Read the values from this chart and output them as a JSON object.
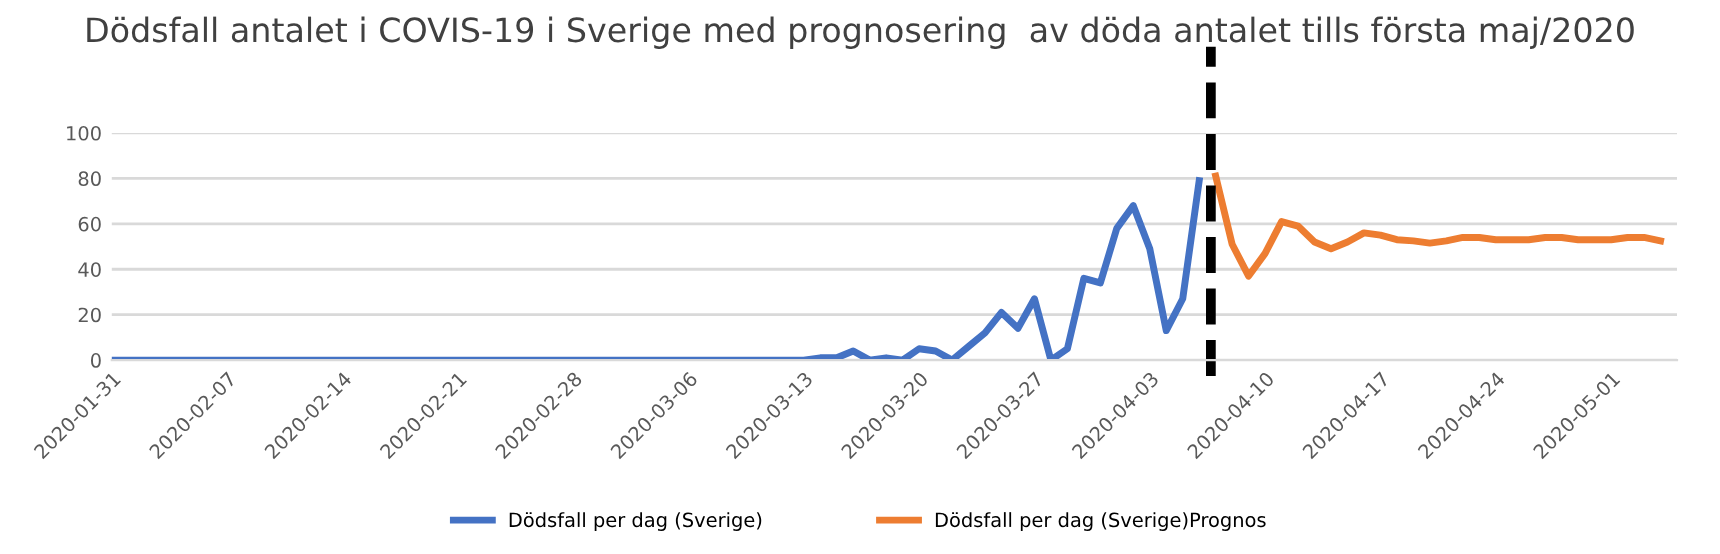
{
  "chart_data": {
    "type": "line",
    "title": "Dödsfall antalet i COVIS-19 i Sverige med prognosering  av döda antalet tills första maj/2020",
    "series": [
      {
        "name": "Dödsfall per dag (Sverige)",
        "color": "#4472c4",
        "x": [
          "2020-01-31",
          "2020-02-01",
          "2020-02-02",
          "2020-02-03",
          "2020-02-04",
          "2020-02-05",
          "2020-02-06",
          "2020-02-07",
          "2020-02-08",
          "2020-02-09",
          "2020-02-10",
          "2020-02-11",
          "2020-02-12",
          "2020-02-13",
          "2020-02-14",
          "2020-02-15",
          "2020-02-16",
          "2020-02-17",
          "2020-02-18",
          "2020-02-19",
          "2020-02-20",
          "2020-02-21",
          "2020-02-22",
          "2020-02-23",
          "2020-02-24",
          "2020-02-25",
          "2020-02-26",
          "2020-02-27",
          "2020-02-28",
          "2020-02-29",
          "2020-03-01",
          "2020-03-02",
          "2020-03-03",
          "2020-03-04",
          "2020-03-05",
          "2020-03-06",
          "2020-03-07",
          "2020-03-08",
          "2020-03-09",
          "2020-03-10",
          "2020-03-11",
          "2020-03-12",
          "2020-03-13",
          "2020-03-14",
          "2020-03-15",
          "2020-03-16",
          "2020-03-17",
          "2020-03-18",
          "2020-03-19",
          "2020-03-20",
          "2020-03-21",
          "2020-03-22",
          "2020-03-23",
          "2020-03-24",
          "2020-03-25",
          "2020-03-26",
          "2020-03-27",
          "2020-03-28",
          "2020-03-29",
          "2020-03-30",
          "2020-03-31",
          "2020-04-01",
          "2020-04-02",
          "2020-04-03",
          "2020-04-04",
          "2020-04-05",
          "2020-04-06"
        ],
        "values": [
          0,
          0,
          0,
          0,
          0,
          0,
          0,
          0,
          0,
          0,
          0,
          0,
          0,
          0,
          0,
          0,
          0,
          0,
          0,
          0,
          0,
          0,
          0,
          0,
          0,
          0,
          0,
          0,
          0,
          0,
          0,
          0,
          0,
          0,
          0,
          0,
          0,
          0,
          0,
          0,
          0,
          0,
          0,
          1,
          1,
          4,
          0,
          1,
          0,
          5,
          4,
          0,
          6,
          12,
          21,
          14,
          27,
          0,
          5,
          36,
          34,
          58,
          68,
          49,
          13,
          27,
          79
        ]
      },
      {
        "name": "Dödsfall per dag (Sverige)Prognos",
        "color": "#ed7d31",
        "x": [
          "2020-04-07",
          "2020-04-08",
          "2020-04-09",
          "2020-04-10",
          "2020-04-11",
          "2020-04-12",
          "2020-04-13",
          "2020-04-14",
          "2020-04-15",
          "2020-04-16",
          "2020-04-17",
          "2020-04-18",
          "2020-04-19",
          "2020-04-20",
          "2020-04-21",
          "2020-04-22",
          "2020-04-23",
          "2020-04-24",
          "2020-04-25",
          "2020-04-26",
          "2020-04-27",
          "2020-04-28",
          "2020-04-29",
          "2020-04-30",
          "2020-05-01",
          "2020-05-02",
          "2020-05-03",
          "2020-05-04"
        ],
        "values": [
          81,
          51,
          37,
          47,
          61,
          59,
          52,
          49,
          52,
          56,
          55,
          53,
          52.5,
          51.5,
          52.5,
          54,
          54,
          53,
          53,
          53,
          54,
          54,
          53,
          53,
          53,
          54,
          54,
          52.5
        ]
      }
    ],
    "xlim": [
      "2020-01-31",
      "2020-05-05"
    ],
    "xticks": [
      "2020-01-31",
      "2020-02-07",
      "2020-02-14",
      "2020-02-21",
      "2020-02-28",
      "2020-03-06",
      "2020-03-13",
      "2020-03-20",
      "2020-03-27",
      "2020-04-03",
      "2020-04-10",
      "2020-04-17",
      "2020-04-24",
      "2020-05-01"
    ],
    "ylim": [
      0,
      100
    ],
    "yticks": [
      0,
      20,
      40,
      60,
      80,
      100
    ],
    "ref_lines": [
      {
        "axis": "x",
        "value": "2020-04-06T17:00",
        "color": "#000000",
        "line_style": "dashed"
      }
    ],
    "grid": "y",
    "legend": "bottom",
    "line_style": "solid",
    "marker": "none"
  }
}
